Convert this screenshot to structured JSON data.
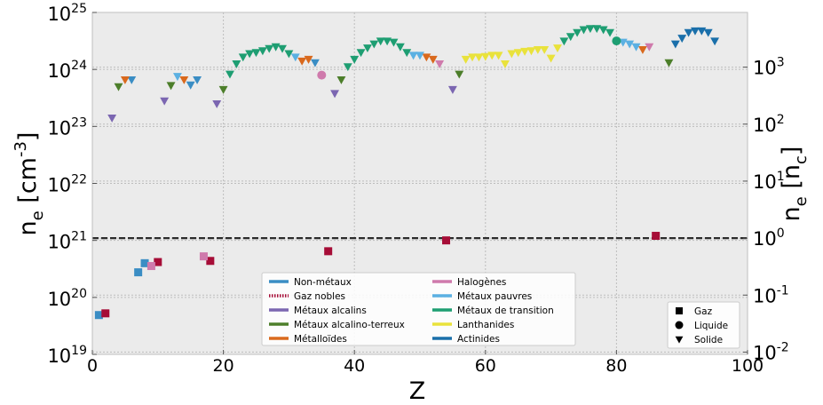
{
  "chart_data": {
    "type": "scatter",
    "xlabel": "Z",
    "ylabel_left": {
      "base": "n",
      "sub": "e",
      "unit_open": " [cm",
      "unit_sup": "-3",
      "unit_close": "]"
    },
    "ylabel_right": {
      "base": "n",
      "sub": "e",
      "unit_open": " [n",
      "unit_sub": "c",
      "unit_close": "]"
    },
    "xlim": [
      0,
      100
    ],
    "ylim_log10": [
      19,
      25
    ],
    "y_scale": "log",
    "grid": true,
    "background": "#ebebeb",
    "critical_density_log10": 21.04,
    "x_ticks": [
      {
        "v": 0,
        "label": "0"
      },
      {
        "v": 20,
        "label": "20"
      },
      {
        "v": 40,
        "label": "40"
      },
      {
        "v": 60,
        "label": "60"
      },
      {
        "v": 80,
        "label": "80"
      },
      {
        "v": 100,
        "label": "100"
      }
    ],
    "y_ticks_left": [
      {
        "e": 19,
        "base": "10",
        "exp": "19"
      },
      {
        "e": 20,
        "base": "10",
        "exp": "20"
      },
      {
        "e": 21,
        "base": "10",
        "exp": "21"
      },
      {
        "e": 22,
        "base": "10",
        "exp": "22"
      },
      {
        "e": 23,
        "base": "10",
        "exp": "23"
      },
      {
        "e": 24,
        "base": "10",
        "exp": "24"
      },
      {
        "e": 25,
        "base": "10",
        "exp": "25"
      }
    ],
    "y_ticks_right": [
      {
        "e": 19.04,
        "base": "10",
        "exp": "-2"
      },
      {
        "e": 20.04,
        "base": "10",
        "exp": "-1"
      },
      {
        "e": 21.04,
        "base": "10",
        "exp": "0"
      },
      {
        "e": 22.04,
        "base": "10",
        "exp": "1"
      },
      {
        "e": 23.04,
        "base": "10",
        "exp": "2"
      },
      {
        "e": 24.04,
        "base": "10",
        "exp": "3"
      }
    ],
    "series": [
      {
        "name": "Non-métaux",
        "color": "#3a8dc4",
        "points": [
          {
            "z": 1,
            "log_ne": 19.69,
            "state": "gaz"
          },
          {
            "z": 6,
            "log_ne": 23.82,
            "state": "solide"
          },
          {
            "z": 7,
            "log_ne": 20.44,
            "state": "gaz"
          },
          {
            "z": 8,
            "log_ne": 20.6,
            "state": "gaz"
          },
          {
            "z": 15,
            "log_ne": 23.73,
            "state": "solide"
          },
          {
            "z": 16,
            "log_ne": 23.82,
            "state": "solide"
          },
          {
            "z": 34,
            "log_ne": 24.12,
            "state": "solide"
          }
        ]
      },
      {
        "name": "Gaz nobles",
        "color": "#a60d37",
        "points": [
          {
            "z": 2,
            "log_ne": 19.72,
            "state": "gaz"
          },
          {
            "z": 10,
            "log_ne": 20.62,
            "state": "gaz"
          },
          {
            "z": 18,
            "log_ne": 20.64,
            "state": "gaz"
          },
          {
            "z": 36,
            "log_ne": 20.81,
            "state": "gaz"
          },
          {
            "z": 54,
            "log_ne": 21.0,
            "state": "gaz"
          },
          {
            "z": 86,
            "log_ne": 21.08,
            "state": "gaz"
          }
        ]
      },
      {
        "name": "Métaux alcalins",
        "color": "#7b66b1",
        "points": [
          {
            "z": 3,
            "log_ne": 23.15,
            "state": "solide"
          },
          {
            "z": 11,
            "log_ne": 23.45,
            "state": "solide"
          },
          {
            "z": 19,
            "log_ne": 23.4,
            "state": "solide"
          },
          {
            "z": 37,
            "log_ne": 23.58,
            "state": "solide"
          },
          {
            "z": 55,
            "log_ne": 23.65,
            "state": "solide"
          }
        ]
      },
      {
        "name": "Métaux alcalino-terreux",
        "color": "#4c7e2a",
        "points": [
          {
            "z": 4,
            "log_ne": 23.7,
            "state": "solide"
          },
          {
            "z": 12,
            "log_ne": 23.72,
            "state": "solide"
          },
          {
            "z": 20,
            "log_ne": 23.65,
            "state": "solide"
          },
          {
            "z": 38,
            "log_ne": 23.82,
            "state": "solide"
          },
          {
            "z": 56,
            "log_ne": 23.92,
            "state": "solide"
          },
          {
            "z": 88,
            "log_ne": 24.12,
            "state": "solide"
          }
        ]
      },
      {
        "name": "Métalloïdes",
        "color": "#d9691d",
        "points": [
          {
            "z": 5,
            "log_ne": 23.82,
            "state": "solide"
          },
          {
            "z": 14,
            "log_ne": 23.82,
            "state": "solide"
          },
          {
            "z": 32,
            "log_ne": 24.15,
            "state": "solide"
          },
          {
            "z": 33,
            "log_ne": 24.18,
            "state": "solide"
          },
          {
            "z": 51,
            "log_ne": 24.22,
            "state": "solide"
          },
          {
            "z": 52,
            "log_ne": 24.18,
            "state": "solide"
          },
          {
            "z": 84,
            "log_ne": 24.35,
            "state": "solide"
          }
        ]
      },
      {
        "name": "Halogènes",
        "color": "#cf7aac",
        "points": [
          {
            "z": 9,
            "log_ne": 20.55,
            "state": "gaz"
          },
          {
            "z": 17,
            "log_ne": 20.72,
            "state": "gaz"
          },
          {
            "z": 35,
            "log_ne": 23.9,
            "state": "liquide"
          },
          {
            "z": 53,
            "log_ne": 24.1,
            "state": "solide"
          },
          {
            "z": 85,
            "log_ne": 24.4,
            "state": "solide"
          }
        ]
      },
      {
        "name": "Métaux pauvres",
        "color": "#5bb0e2",
        "points": [
          {
            "z": 13,
            "log_ne": 23.88,
            "state": "solide"
          },
          {
            "z": 31,
            "log_ne": 24.22,
            "state": "solide"
          },
          {
            "z": 49,
            "log_ne": 24.25,
            "state": "solide"
          },
          {
            "z": 50,
            "log_ne": 24.25,
            "state": "solide"
          },
          {
            "z": 81,
            "log_ne": 24.48,
            "state": "solide"
          },
          {
            "z": 82,
            "log_ne": 24.45,
            "state": "solide"
          },
          {
            "z": 83,
            "log_ne": 24.4,
            "state": "solide"
          }
        ]
      },
      {
        "name": "Métaux de transition",
        "color": "#1e9e72",
        "points": [
          {
            "z": 21,
            "log_ne": 23.92,
            "state": "solide"
          },
          {
            "z": 22,
            "log_ne": 24.1,
            "state": "solide"
          },
          {
            "z": 23,
            "log_ne": 24.22,
            "state": "solide"
          },
          {
            "z": 24,
            "log_ne": 24.28,
            "state": "solide"
          },
          {
            "z": 25,
            "log_ne": 24.3,
            "state": "solide"
          },
          {
            "z": 26,
            "log_ne": 24.33,
            "state": "solide"
          },
          {
            "z": 27,
            "log_ne": 24.37,
            "state": "solide"
          },
          {
            "z": 28,
            "log_ne": 24.4,
            "state": "solide"
          },
          {
            "z": 29,
            "log_ne": 24.37,
            "state": "solide"
          },
          {
            "z": 30,
            "log_ne": 24.28,
            "state": "solide"
          },
          {
            "z": 39,
            "log_ne": 24.05,
            "state": "solide"
          },
          {
            "z": 40,
            "log_ne": 24.18,
            "state": "solide"
          },
          {
            "z": 41,
            "log_ne": 24.3,
            "state": "solide"
          },
          {
            "z": 42,
            "log_ne": 24.38,
            "state": "solide"
          },
          {
            "z": 43,
            "log_ne": 24.45,
            "state": "solide"
          },
          {
            "z": 44,
            "log_ne": 24.5,
            "state": "solide"
          },
          {
            "z": 45,
            "log_ne": 24.5,
            "state": "solide"
          },
          {
            "z": 46,
            "log_ne": 24.48,
            "state": "solide"
          },
          {
            "z": 47,
            "log_ne": 24.4,
            "state": "solide"
          },
          {
            "z": 48,
            "log_ne": 24.3,
            "state": "solide"
          },
          {
            "z": 72,
            "log_ne": 24.5,
            "state": "solide"
          },
          {
            "z": 73,
            "log_ne": 24.58,
            "state": "solide"
          },
          {
            "z": 74,
            "log_ne": 24.65,
            "state": "solide"
          },
          {
            "z": 75,
            "log_ne": 24.7,
            "state": "solide"
          },
          {
            "z": 76,
            "log_ne": 24.72,
            "state": "solide"
          },
          {
            "z": 77,
            "log_ne": 24.72,
            "state": "solide"
          },
          {
            "z": 78,
            "log_ne": 24.7,
            "state": "solide"
          },
          {
            "z": 79,
            "log_ne": 24.65,
            "state": "solide"
          },
          {
            "z": 80,
            "log_ne": 24.5,
            "state": "liquide"
          }
        ]
      },
      {
        "name": "Lanthanides",
        "color": "#e9e23b",
        "points": [
          {
            "z": 57,
            "log_ne": 24.18,
            "state": "solide"
          },
          {
            "z": 58,
            "log_ne": 24.22,
            "state": "solide"
          },
          {
            "z": 59,
            "log_ne": 24.22,
            "state": "solide"
          },
          {
            "z": 60,
            "log_ne": 24.23,
            "state": "solide"
          },
          {
            "z": 61,
            "log_ne": 24.25,
            "state": "solide"
          },
          {
            "z": 62,
            "log_ne": 24.25,
            "state": "solide"
          },
          {
            "z": 63,
            "log_ne": 24.1,
            "state": "solide"
          },
          {
            "z": 64,
            "log_ne": 24.28,
            "state": "solide"
          },
          {
            "z": 65,
            "log_ne": 24.3,
            "state": "solide"
          },
          {
            "z": 66,
            "log_ne": 24.32,
            "state": "solide"
          },
          {
            "z": 67,
            "log_ne": 24.33,
            "state": "solide"
          },
          {
            "z": 68,
            "log_ne": 24.35,
            "state": "solide"
          },
          {
            "z": 69,
            "log_ne": 24.35,
            "state": "solide"
          },
          {
            "z": 70,
            "log_ne": 24.2,
            "state": "solide"
          },
          {
            "z": 71,
            "log_ne": 24.38,
            "state": "solide"
          }
        ]
      },
      {
        "name": "Actinides",
        "color": "#1a6faa",
        "points": [
          {
            "z": 89,
            "log_ne": 24.45,
            "state": "solide"
          },
          {
            "z": 90,
            "log_ne": 24.55,
            "state": "solide"
          },
          {
            "z": 91,
            "log_ne": 24.65,
            "state": "solide"
          },
          {
            "z": 92,
            "log_ne": 24.68,
            "state": "solide"
          },
          {
            "z": 93,
            "log_ne": 24.68,
            "state": "solide"
          },
          {
            "z": 94,
            "log_ne": 24.65,
            "state": "solide"
          },
          {
            "z": 95,
            "log_ne": 24.5,
            "state": "solide"
          }
        ]
      }
    ],
    "legend": {
      "placement": "bottom-center",
      "series_order": [
        "Non-métaux",
        "Gaz nobles",
        "Métaux alcalins",
        "Métaux alcalino-terreux",
        "Métalloïdes",
        "Halogènes",
        "Métaux pauvres",
        "Métaux de transition",
        "Lanthanides",
        "Actinides"
      ]
    },
    "legend_states": {
      "placement": "bottom-right",
      "items": [
        {
          "state": "gaz",
          "label": "Gaz",
          "marker": "square"
        },
        {
          "state": "liquide",
          "label": "Liquide",
          "marker": "circle"
        },
        {
          "state": "solide",
          "label": "Solide",
          "marker": "triangle-down"
        }
      ]
    }
  }
}
